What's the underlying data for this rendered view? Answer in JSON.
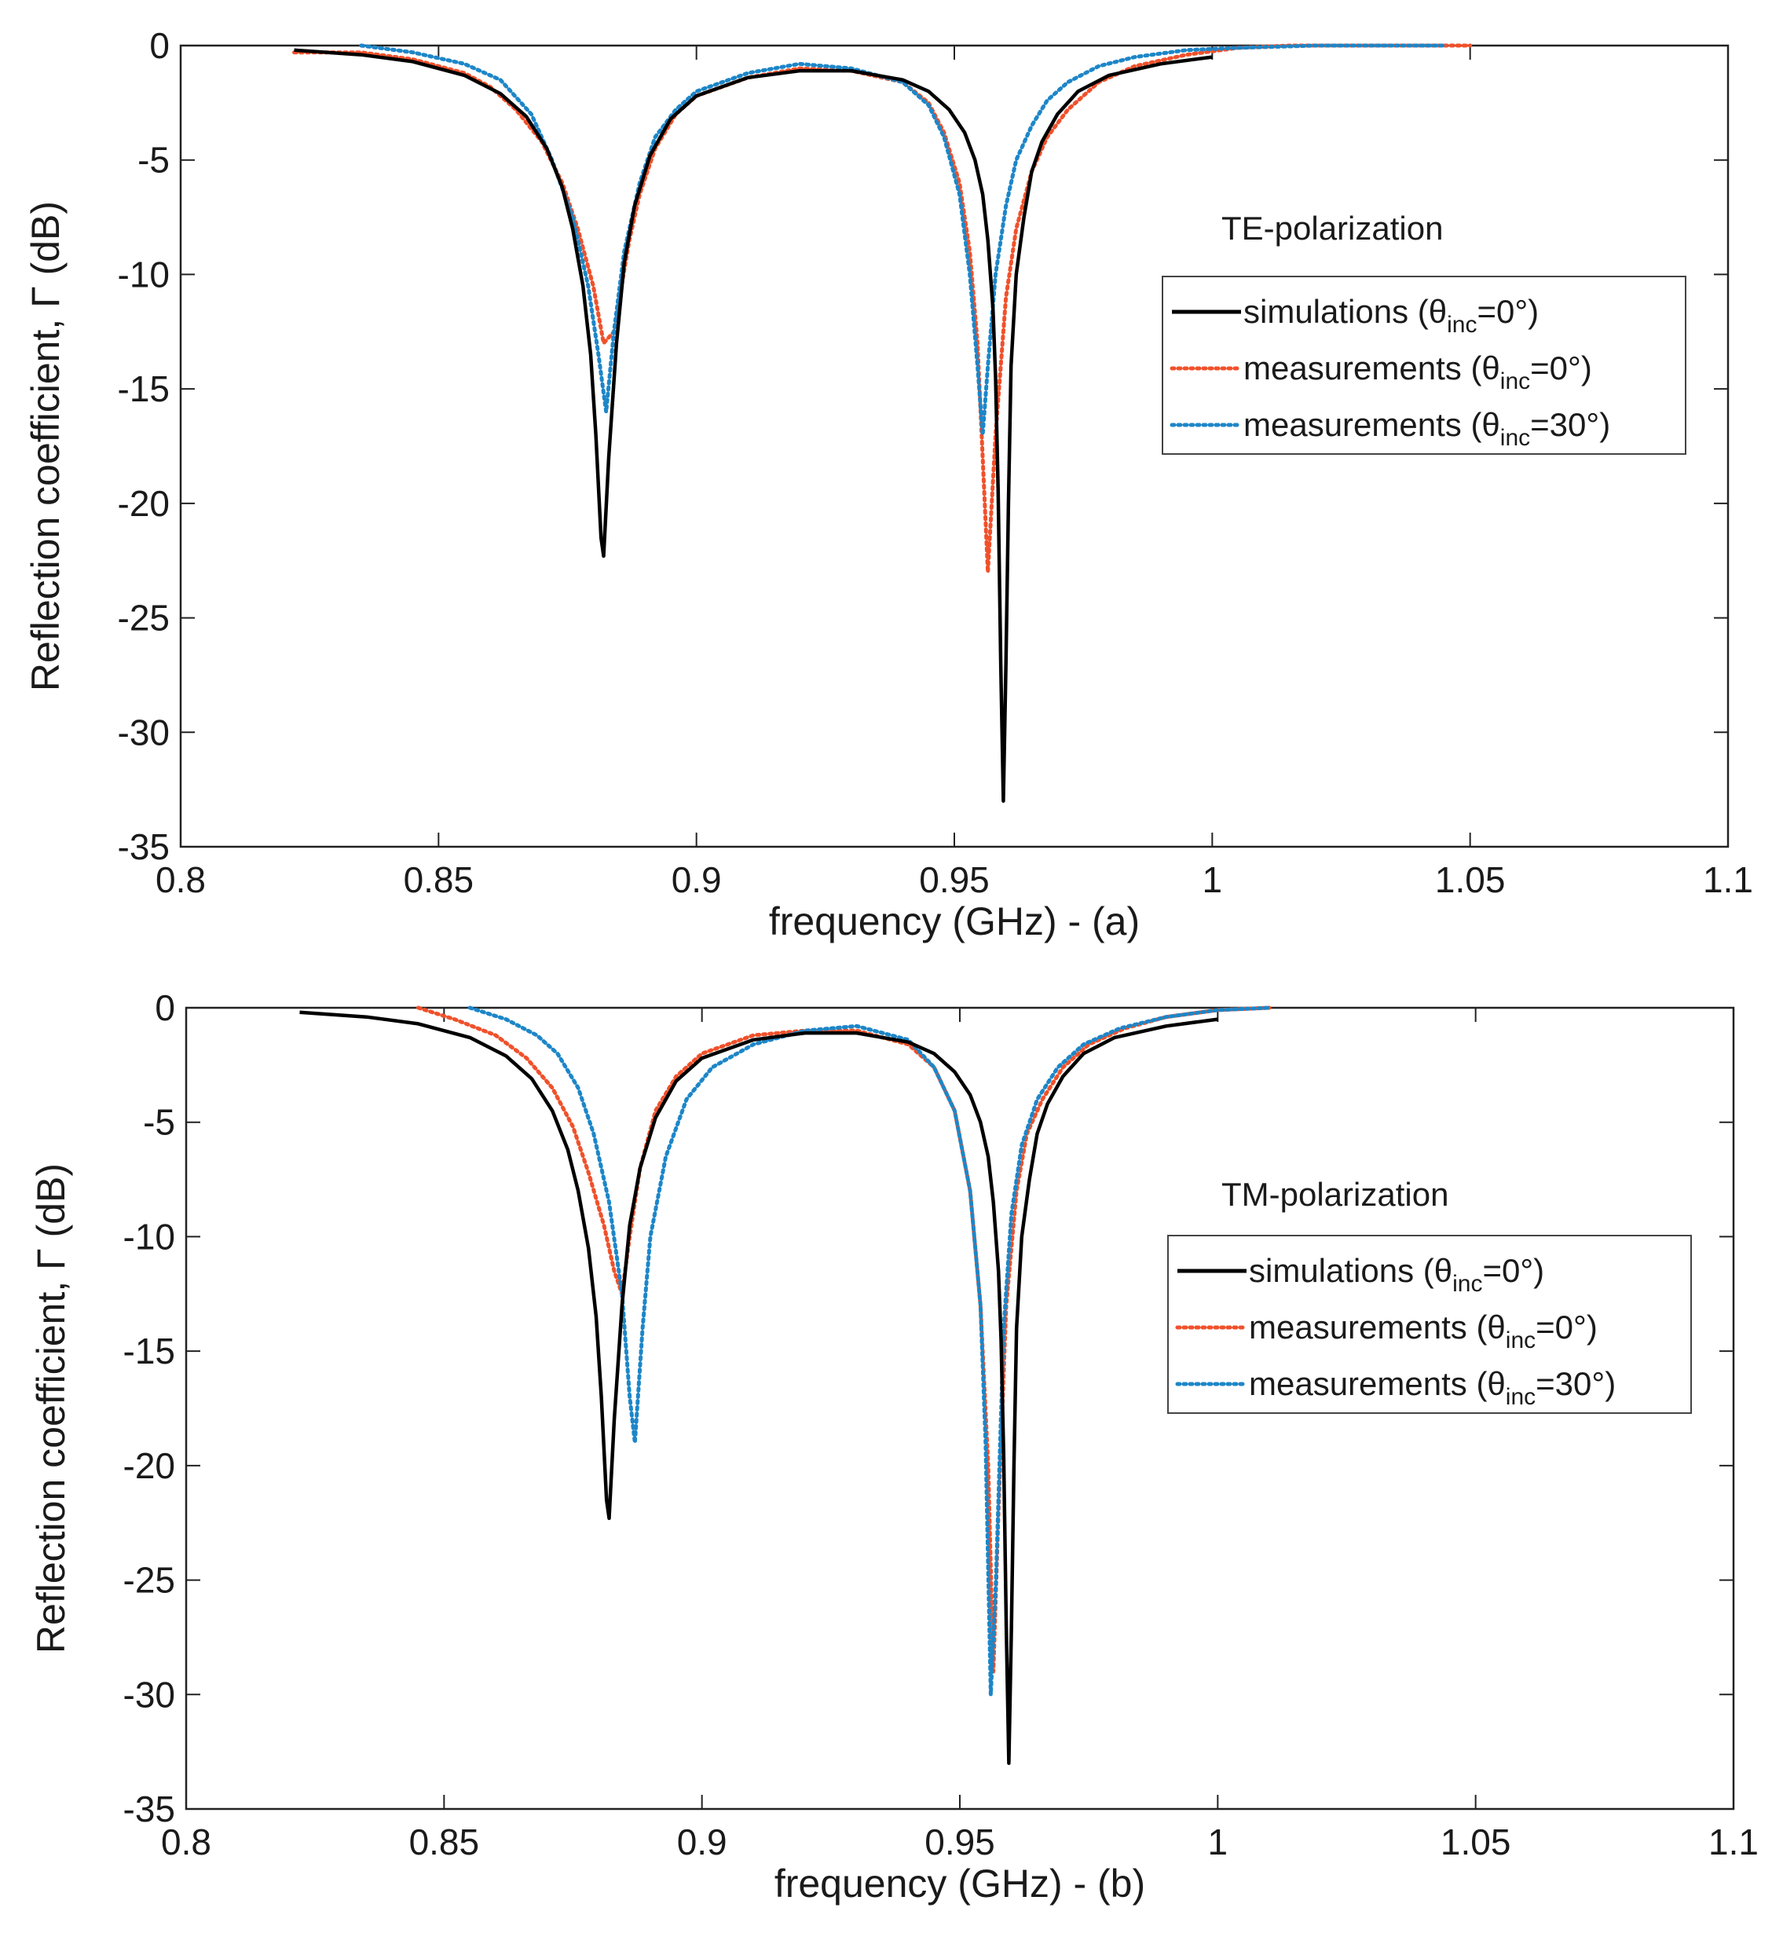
{
  "figure": {
    "caption": ""
  },
  "chart_data": [
    {
      "type": "line",
      "title": "",
      "xlabel": "frequency (GHz)  -  (a)",
      "ylabel": "Reflection coefficient, Γ (dB)",
      "xlim": [
        0.8,
        1.1
      ],
      "ylim": [
        -35,
        0
      ],
      "xticks": [
        "0.8",
        "0.85",
        "0.9",
        "0.95",
        "1",
        "1.05",
        "1.1"
      ],
      "yticks": [
        "0",
        "-5",
        "-10",
        "-15",
        "-20",
        "-25",
        "-30",
        "-35"
      ],
      "annotation": "TE-polarization",
      "legend_position": "center-right",
      "grid": false,
      "series": [
        {
          "name": "simulations (θinc=0°)",
          "label_main": "simulations (θ",
          "label_sub": "inc",
          "label_tail": "=0°)",
          "color": "#000000",
          "style": "solid",
          "x": [
            0.822,
            0.835,
            0.845,
            0.855,
            0.862,
            0.867,
            0.871,
            0.874,
            0.876,
            0.878,
            0.8795,
            0.8805,
            0.8815,
            0.882,
            0.883,
            0.8845,
            0.886,
            0.888,
            0.891,
            0.895,
            0.9,
            0.91,
            0.92,
            0.93,
            0.94,
            0.945,
            0.949,
            0.952,
            0.954,
            0.9555,
            0.9565,
            0.9575,
            0.958,
            0.9585,
            0.959,
            0.9595,
            0.96,
            0.9605,
            0.961,
            0.962,
            0.9635,
            0.965,
            0.967,
            0.97,
            0.974,
            0.98,
            0.99,
            1.0
          ],
          "y": [
            -0.2,
            -0.4,
            -0.7,
            -1.3,
            -2.1,
            -3.1,
            -4.5,
            -6.2,
            -8.0,
            -10.5,
            -13.5,
            -17.0,
            -21.5,
            -22.3,
            -18.0,
            -13.0,
            -9.5,
            -7.0,
            -4.8,
            -3.2,
            -2.2,
            -1.4,
            -1.1,
            -1.1,
            -1.5,
            -2.0,
            -2.8,
            -3.8,
            -5.0,
            -6.5,
            -8.5,
            -11.5,
            -14.5,
            -19.5,
            -27.0,
            -33.0,
            -27.0,
            -20.0,
            -14.0,
            -10.0,
            -7.5,
            -5.5,
            -4.2,
            -3.0,
            -2.0,
            -1.3,
            -0.8,
            -0.5
          ]
        },
        {
          "name": "measurements (θinc=0°)",
          "label_main": "measurements (θ",
          "label_sub": "inc",
          "label_tail": "=0°)",
          "color": "#f0512b",
          "style": "dotted",
          "x": [
            0.822,
            0.835,
            0.845,
            0.855,
            0.86,
            0.865,
            0.87,
            0.874,
            0.877,
            0.88,
            0.882,
            0.884,
            0.8855,
            0.887,
            0.889,
            0.892,
            0.896,
            0.9,
            0.91,
            0.92,
            0.93,
            0.94,
            0.945,
            0.948,
            0.951,
            0.953,
            0.9545,
            0.9555,
            0.9565,
            0.958,
            0.96,
            0.962,
            0.965,
            0.968,
            0.972,
            0.978,
            0.985,
            0.995,
            1.005,
            1.015,
            1.03,
            1.05
          ],
          "y": [
            -0.3,
            -0.3,
            -0.6,
            -1.2,
            -1.8,
            -2.8,
            -4.2,
            -6.0,
            -8.0,
            -10.5,
            -13.0,
            -12.5,
            -10.5,
            -8.5,
            -6.5,
            -4.5,
            -3.0,
            -2.2,
            -1.4,
            -1.0,
            -1.1,
            -1.6,
            -2.5,
            -3.8,
            -6.0,
            -9.0,
            -13.0,
            -18.0,
            -23.0,
            -17.0,
            -11.0,
            -8.0,
            -5.5,
            -4.0,
            -2.8,
            -1.6,
            -0.9,
            -0.4,
            -0.1,
            0.0,
            0.0,
            0.0
          ]
        },
        {
          "name": "measurements (θinc=30°)",
          "label_main": "measurements (θ",
          "label_sub": "inc",
          "label_tail": "=30°)",
          "color": "#1d86c8",
          "style": "dotted",
          "x": [
            0.835,
            0.845,
            0.855,
            0.862,
            0.868,
            0.872,
            0.876,
            0.879,
            0.881,
            0.8825,
            0.884,
            0.886,
            0.889,
            0.892,
            0.896,
            0.9,
            0.91,
            0.92,
            0.93,
            0.94,
            0.945,
            0.948,
            0.951,
            0.953,
            0.9545,
            0.9555,
            0.9565,
            0.958,
            0.96,
            0.962,
            0.965,
            0.968,
            0.972,
            0.978,
            0.985,
            0.995,
            1.005,
            1.02,
            1.045
          ],
          "y": [
            0.0,
            -0.3,
            -0.8,
            -1.5,
            -3.0,
            -5.0,
            -7.5,
            -10.5,
            -13.5,
            -16.0,
            -12.5,
            -9.0,
            -6.0,
            -4.0,
            -2.8,
            -2.0,
            -1.2,
            -0.8,
            -1.0,
            -1.6,
            -2.6,
            -4.0,
            -6.5,
            -10.0,
            -14.0,
            -17.0,
            -14.0,
            -10.0,
            -7.0,
            -5.0,
            -3.5,
            -2.4,
            -1.6,
            -0.9,
            -0.5,
            -0.2,
            -0.1,
            0.0,
            0.0
          ]
        }
      ]
    },
    {
      "type": "line",
      "title": "",
      "xlabel": "frequency (GHz)  -  (b)",
      "ylabel": "Reflection coefficient, Γ (dB)",
      "xlim": [
        0.8,
        1.1
      ],
      "ylim": [
        -35,
        0
      ],
      "xticks": [
        "0.8",
        "0.85",
        "0.9",
        "0.95",
        "1",
        "1.05",
        "1.1"
      ],
      "yticks": [
        "0",
        "-5",
        "-10",
        "-15",
        "-20",
        "-25",
        "-30",
        "-35"
      ],
      "annotation": "TM-polarization",
      "legend_position": "center-right",
      "grid": false,
      "series": [
        {
          "name": "simulations (θinc=0°)",
          "label_main": "simulations (θ",
          "label_sub": "inc",
          "label_tail": "=0°)",
          "color": "#000000",
          "style": "solid",
          "x": [
            0.822,
            0.835,
            0.845,
            0.855,
            0.862,
            0.867,
            0.871,
            0.874,
            0.876,
            0.878,
            0.8795,
            0.8805,
            0.8815,
            0.882,
            0.883,
            0.8845,
            0.886,
            0.888,
            0.891,
            0.895,
            0.9,
            0.91,
            0.92,
            0.93,
            0.94,
            0.945,
            0.949,
            0.952,
            0.954,
            0.9555,
            0.9565,
            0.9575,
            0.958,
            0.9585,
            0.959,
            0.9595,
            0.96,
            0.9605,
            0.961,
            0.962,
            0.9635,
            0.965,
            0.967,
            0.97,
            0.974,
            0.98,
            0.99,
            1.0
          ],
          "y": [
            -0.2,
            -0.4,
            -0.7,
            -1.3,
            -2.1,
            -3.1,
            -4.5,
            -6.2,
            -8.0,
            -10.5,
            -13.5,
            -17.0,
            -21.5,
            -22.3,
            -18.0,
            -13.0,
            -9.5,
            -7.0,
            -4.8,
            -3.2,
            -2.2,
            -1.4,
            -1.1,
            -1.1,
            -1.5,
            -2.0,
            -2.8,
            -3.8,
            -5.0,
            -6.5,
            -8.5,
            -11.5,
            -14.5,
            -19.5,
            -27.0,
            -33.0,
            -27.0,
            -20.0,
            -14.0,
            -10.0,
            -7.5,
            -5.5,
            -4.2,
            -3.0,
            -2.0,
            -1.3,
            -0.8,
            -0.5
          ]
        },
        {
          "name": "measurements (θinc=0°)",
          "label_main": "measurements (θ",
          "label_sub": "inc",
          "label_tail": "=0°)",
          "color": "#f0512b",
          "style": "dotted",
          "x": [
            0.845,
            0.852,
            0.86,
            0.866,
            0.871,
            0.875,
            0.878,
            0.881,
            0.883,
            0.8845,
            0.886,
            0.888,
            0.891,
            0.895,
            0.9,
            0.91,
            0.92,
            0.93,
            0.94,
            0.945,
            0.949,
            0.952,
            0.954,
            0.9555,
            0.9565,
            0.9575,
            0.959,
            0.961,
            0.963,
            0.966,
            0.97,
            0.975,
            0.982,
            0.99,
            1.0,
            1.01
          ],
          "y": [
            0.0,
            -0.5,
            -1.2,
            -2.2,
            -3.5,
            -5.2,
            -7.2,
            -9.5,
            -11.5,
            -12.5,
            -10.0,
            -7.0,
            -4.5,
            -3.0,
            -2.0,
            -1.2,
            -1.0,
            -1.0,
            -1.6,
            -2.6,
            -4.5,
            -8.0,
            -13.0,
            -20.0,
            -29.0,
            -22.0,
            -13.0,
            -8.0,
            -5.5,
            -4.0,
            -2.6,
            -1.6,
            -0.9,
            -0.4,
            -0.1,
            0.0
          ]
        },
        {
          "name": "measurements (θinc=30°)",
          "label_main": "measurements (θ",
          "label_sub": "inc",
          "label_tail": "=30°)",
          "color": "#1d86c8",
          "style": "dotted",
          "x": [
            0.855,
            0.862,
            0.868,
            0.872,
            0.876,
            0.879,
            0.882,
            0.8845,
            0.886,
            0.887,
            0.8885,
            0.89,
            0.893,
            0.897,
            0.902,
            0.91,
            0.92,
            0.93,
            0.94,
            0.945,
            0.949,
            0.952,
            0.954,
            0.955,
            0.956,
            0.957,
            0.9585,
            0.96,
            0.962,
            0.965,
            0.969,
            0.974,
            0.981,
            0.99,
            1.0,
            1.01
          ],
          "y": [
            0.0,
            -0.5,
            -1.2,
            -2.0,
            -3.5,
            -5.5,
            -8.5,
            -12.5,
            -17.0,
            -19.0,
            -14.0,
            -10.0,
            -6.5,
            -4.0,
            -2.6,
            -1.6,
            -1.0,
            -0.8,
            -1.4,
            -2.6,
            -4.5,
            -8.0,
            -13.0,
            -19.0,
            -30.0,
            -25.0,
            -14.0,
            -9.0,
            -6.0,
            -4.0,
            -2.6,
            -1.6,
            -0.9,
            -0.4,
            -0.1,
            0.0
          ]
        }
      ]
    }
  ]
}
